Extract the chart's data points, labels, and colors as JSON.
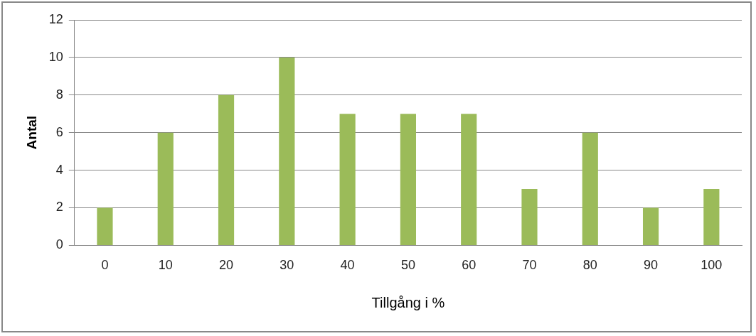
{
  "chart_data": {
    "type": "bar",
    "xlabel": "Tillgång i %",
    "ylabel": "Antal",
    "categories": [
      "0",
      "10",
      "20",
      "30",
      "40",
      "50",
      "60",
      "70",
      "80",
      "90",
      "100"
    ],
    "values": [
      2,
      6,
      8,
      10,
      7,
      7,
      7,
      3,
      6,
      2,
      3
    ],
    "color": "#9bbb59",
    "ylim": [
      0,
      12
    ],
    "yticks": [
      0,
      2,
      4,
      6,
      8,
      10,
      12
    ],
    "grid": "y",
    "legend": false
  }
}
